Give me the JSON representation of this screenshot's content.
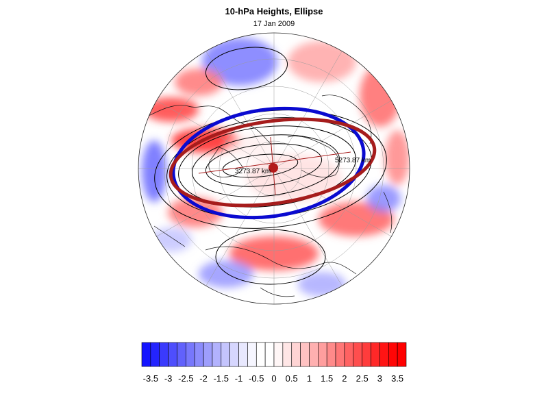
{
  "figure": {
    "title": "10-hPa Heights, Ellipse",
    "subtitle": "17 Jan 2009"
  },
  "map": {
    "projection": "north polar stereographic",
    "anomaly_field": "red/blue shaded anomalies",
    "annotations": {
      "major_axis_label": "5273.87 km",
      "minor_axis_label": "3273.87 km"
    },
    "colors": {
      "ellipse_fit": "#a61c1c",
      "polar_vortex_edge": "#0a0ad0",
      "centroid": "#b31b1b",
      "positive": "#ff2020",
      "negative": "#2020ff"
    }
  },
  "colorbar": {
    "tick_labels": [
      "-3.5",
      "-3",
      "-2.5",
      "-2",
      "-1.5",
      "-1",
      "-0.5",
      "0",
      "0.5",
      "1",
      "1.5",
      "2",
      "2.5",
      "3",
      "3.5"
    ],
    "range": [
      -3.75,
      3.75
    ],
    "step": 0.25,
    "colors": [
      "#1414ff",
      "#2424fe",
      "#3a3afd",
      "#4e4efd",
      "#6161fc",
      "#7777fc",
      "#8b8bfc",
      "#9e9efc",
      "#b2b2fd",
      "#c4c4fd",
      "#d6d6fe",
      "#e8e8fe",
      "#f6f6ff",
      "#ffffff",
      "#ffffff",
      "#fff6f6",
      "#ffe6e6",
      "#ffd4d4",
      "#ffc2c2",
      "#ffb0b0",
      "#ff9e9e",
      "#ff8a8a",
      "#ff7676",
      "#ff6262",
      "#ff4e4e",
      "#ff3c3c",
      "#ff2828",
      "#ff1414",
      "#ff0606",
      "#ff0000"
    ]
  }
}
